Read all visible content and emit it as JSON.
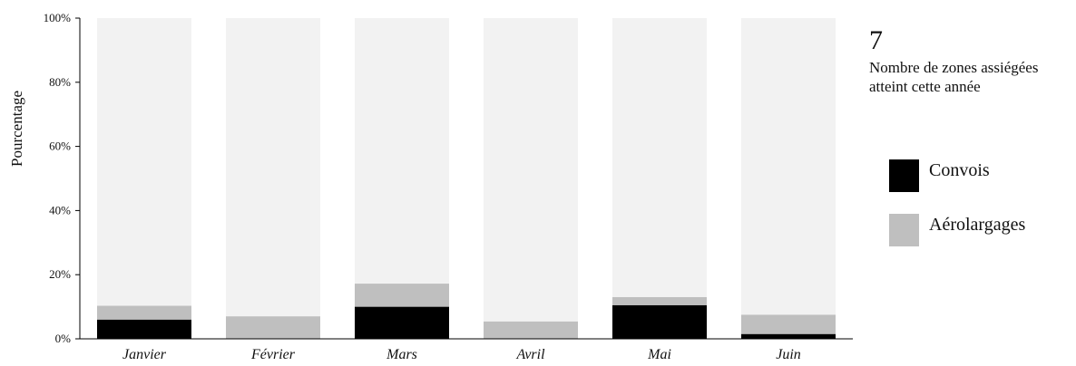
{
  "colors": {
    "convois": "#000000",
    "aerolargages": "#bfbfbf",
    "remainder": "#f2f2f2",
    "axis": "#000000"
  },
  "side": {
    "value": "7",
    "caption": "Nombre de zones assiégées atteint cette année"
  },
  "legend": [
    {
      "label": "Convois",
      "color": "#000000"
    },
    {
      "label": "Aérolargages",
      "color": "#bfbfbf"
    }
  ],
  "chart_data": {
    "type": "bar",
    "stacked": true,
    "percent": true,
    "categories": [
      "Janvier",
      "Février",
      "Mars",
      "Avril",
      "Mai",
      "Juin"
    ],
    "series": [
      {
        "name": "Convois",
        "values": [
          6,
          0,
          10,
          0,
          10.5,
          1.5
        ]
      },
      {
        "name": "Aérolargages",
        "values": [
          4.3,
          7,
          7.2,
          5.4,
          2.5,
          6
        ]
      }
    ],
    "ylabel": "Pourcentage",
    "yticks": [
      "0%",
      "20%",
      "40%",
      "60%",
      "80%",
      "100%"
    ],
    "ylim": [
      0,
      100
    ],
    "grid": false
  }
}
